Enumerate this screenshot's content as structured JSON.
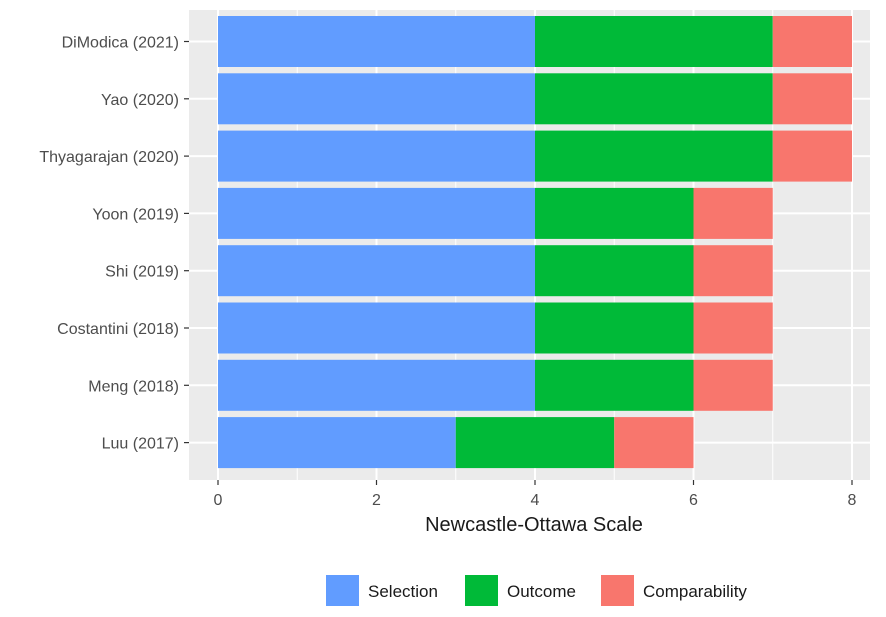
{
  "chart_data": {
    "type": "bar",
    "orientation": "horizontal",
    "stacked": true,
    "title": "",
    "xlabel": "Newcastle-Ottawa Scale",
    "ylabel": "",
    "xlim": [
      0,
      8
    ],
    "x_ticks": [
      0,
      2,
      4,
      6,
      8
    ],
    "grid": true,
    "legend_position": "bottom",
    "categories": [
      "DiModica (2021)",
      "Yao (2020)",
      "Thyagarajan (2020)",
      "Yoon (2019)",
      "Shi (2019)",
      "Costantini (2018)",
      "Meng (2018)",
      "Luu (2017)"
    ],
    "series": [
      {
        "name": "Selection",
        "color": "#619CFF",
        "values": [
          4,
          4,
          4,
          4,
          4,
          4,
          4,
          3
        ]
      },
      {
        "name": "Outcome",
        "color": "#00BA38",
        "values": [
          3,
          3,
          3,
          2,
          2,
          2,
          2,
          2
        ]
      },
      {
        "name": "Comparability",
        "color": "#F8766D",
        "values": [
          1,
          1,
          1,
          1,
          1,
          1,
          1,
          1
        ]
      }
    ],
    "panel_background": "#EBEBEB",
    "grid_color": "#FFFFFF"
  }
}
